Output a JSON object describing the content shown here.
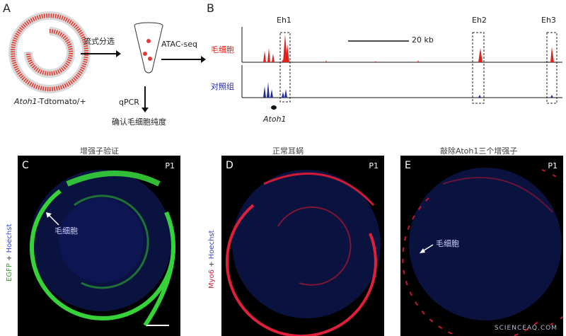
{
  "panels": {
    "A": {
      "letter": "A",
      "sort_label": "流式分选",
      "atac_label": "ATAC-seq",
      "qpcr_label": "qPCR",
      "confirm_label": "确认毛细胞纯度",
      "genotype_italic": "Atoh1",
      "genotype_rest": "-Tdtomato/+"
    },
    "B": {
      "letter": "B",
      "enhancers": [
        "Eh1",
        "Eh2",
        "Eh3"
      ],
      "scale_label": "20 kb",
      "track_hair": "毛细胞",
      "track_control": "对照组",
      "gene_label": "Atoh1",
      "colors": {
        "hair": "#e0201b",
        "control": "#1f2a9c"
      }
    },
    "C": {
      "letter": "C",
      "title": "增强子验证",
      "age": "P1",
      "annotation": "毛细胞",
      "stain_primary": "EGFP",
      "stain_plus": " + ",
      "stain_secondary": "Hoechst",
      "colors": {
        "primary": "#35d23a",
        "secondary": "#3344dd"
      }
    },
    "D": {
      "letter": "D",
      "title": "正常耳蜗",
      "age": "P1",
      "stain_primary": "Myo6",
      "stain_plus": " + ",
      "stain_secondary": "Hoechst",
      "colors": {
        "primary": "#e0203a",
        "secondary": "#3344dd"
      }
    },
    "E": {
      "letter": "E",
      "title": "敲除Atoh1三个增强子",
      "age": "P1",
      "annotation": "毛细胞"
    }
  },
  "watermark": "SCIENCEAQ.COM"
}
